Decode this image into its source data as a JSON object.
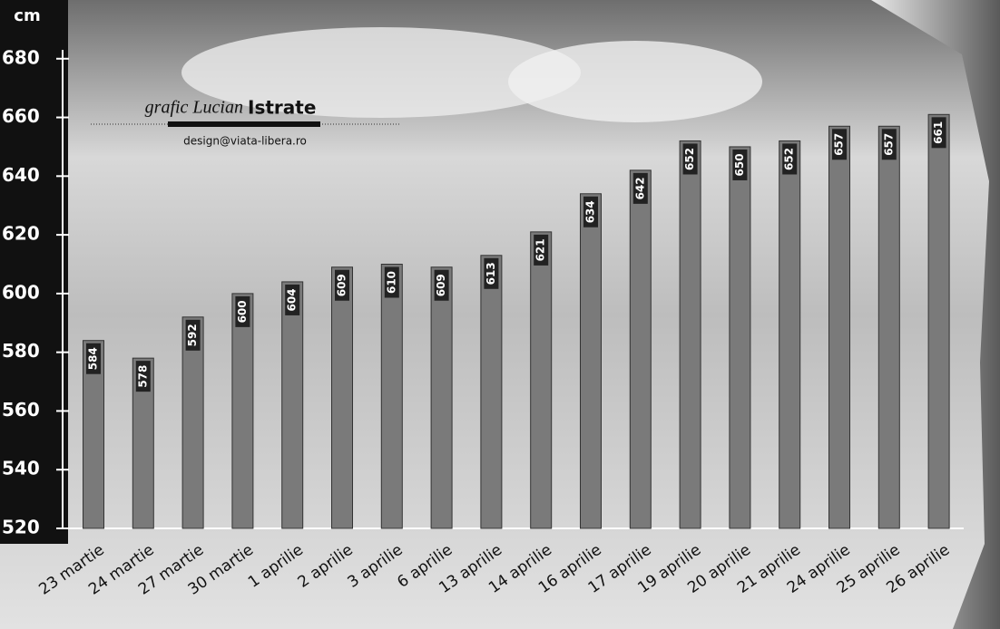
{
  "chart_data": {
    "type": "bar",
    "y_label": "cm",
    "credit_italic": "grafic Lucian",
    "credit_bold": "Istrate",
    "credit_email": "design@viata-libera.ro",
    "categories": [
      "23 martie",
      "24 martie",
      "27 martie",
      "30 martie",
      "1 aprilie",
      "2 aprilie",
      "3 aprilie",
      "6 aprilie",
      "13 aprilie",
      "14 aprilie",
      "16 aprilie",
      "17 aprilie",
      "19 aprilie",
      "20 aprilie",
      "21 aprilie",
      "24 aprilie",
      "25 aprilie",
      "26 aprilie"
    ],
    "values": [
      584,
      578,
      592,
      600,
      604,
      609,
      610,
      609,
      613,
      621,
      634,
      642,
      652,
      650,
      652,
      657,
      657,
      661
    ],
    "color": "#7a7a7a",
    "ylim": [
      520,
      700
    ],
    "yticks": [
      520,
      540,
      560,
      580,
      600,
      620,
      640,
      660,
      680
    ],
    "grid": false
  }
}
